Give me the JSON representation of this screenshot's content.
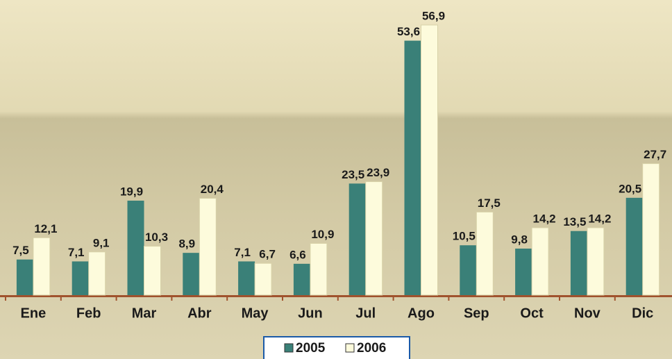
{
  "chart_data": {
    "type": "bar",
    "categories": [
      "Ene",
      "Feb",
      "Mar",
      "Abr",
      "May",
      "Jun",
      "Jul",
      "Ago",
      "Sep",
      "Oct",
      "Nov",
      "Dic"
    ],
    "series": [
      {
        "name": "2005",
        "color": "#3a8078",
        "values": [
          7.5,
          7.1,
          19.9,
          8.9,
          7.1,
          6.6,
          23.5,
          53.6,
          10.5,
          9.8,
          13.5,
          20.5
        ],
        "value_labels": [
          "7,5",
          "7,1",
          "19,9",
          "8,9",
          "7,1",
          "6,6",
          "23,5",
          "53,6",
          "10,5",
          "9,8",
          "13,5",
          "20,5"
        ]
      },
      {
        "name": "2006",
        "color": "#fdfbdc",
        "values": [
          12.1,
          9.1,
          10.3,
          20.4,
          6.7,
          10.9,
          23.9,
          56.9,
          17.5,
          14.2,
          14.2,
          27.7
        ],
        "value_labels": [
          "12,1",
          "9,1",
          "10,3",
          "20,4",
          "6,7",
          "10,9",
          "23,9",
          "56,9",
          "17,5",
          "14,2",
          "14,2",
          "27,7"
        ]
      }
    ],
    "legend": "bottom"
  }
}
